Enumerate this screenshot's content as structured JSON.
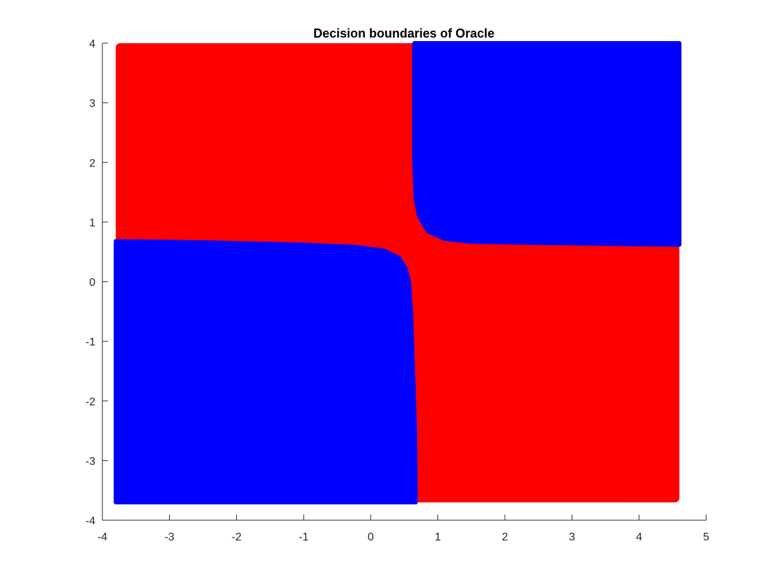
{
  "chart_data": {
    "type": "scatter",
    "title": "Decision boundaries of Oracle",
    "xlabel": "",
    "ylabel": "",
    "xlim": [
      -4,
      5
    ],
    "ylim": [
      -4,
      4
    ],
    "x_ticks": [
      "-4",
      "-3",
      "-2",
      "-1",
      "0",
      "1",
      "2",
      "3",
      "4",
      "5"
    ],
    "y_ticks": [
      "-4",
      "-3",
      "-2",
      "-1",
      "0",
      "1",
      "2",
      "3",
      "4"
    ],
    "grid": false,
    "point_extent": {
      "x": [
        -3.8,
        4.6
      ],
      "y": [
        -3.7,
        4.0
      ]
    },
    "classes": [
      {
        "color": "#ff0000"
      },
      {
        "color": "#0000ff"
      }
    ],
    "regions": [
      {
        "color": "#0000ff",
        "description_points": [
          [
            0.65,
            4.0
          ],
          [
            0.65,
            2.0
          ],
          [
            0.67,
            1.4
          ],
          [
            0.72,
            1.1
          ],
          [
            0.85,
            0.85
          ],
          [
            1.1,
            0.72
          ],
          [
            1.5,
            0.67
          ],
          [
            2.5,
            0.65
          ],
          [
            4.6,
            0.62
          ],
          [
            4.6,
            4.0
          ]
        ]
      },
      {
        "color": "#0000ff",
        "description_points": [
          [
            -3.8,
            0.68
          ],
          [
            -2.5,
            0.66
          ],
          [
            -1.0,
            0.62
          ],
          [
            -0.2,
            0.58
          ],
          [
            0.2,
            0.52
          ],
          [
            0.42,
            0.4
          ],
          [
            0.52,
            0.22
          ],
          [
            0.57,
            0.0
          ],
          [
            0.6,
            -0.5
          ],
          [
            0.63,
            -1.5
          ],
          [
            0.66,
            -2.5
          ],
          [
            0.67,
            -3.7
          ],
          [
            -3.8,
            -3.7
          ]
        ]
      }
    ]
  }
}
